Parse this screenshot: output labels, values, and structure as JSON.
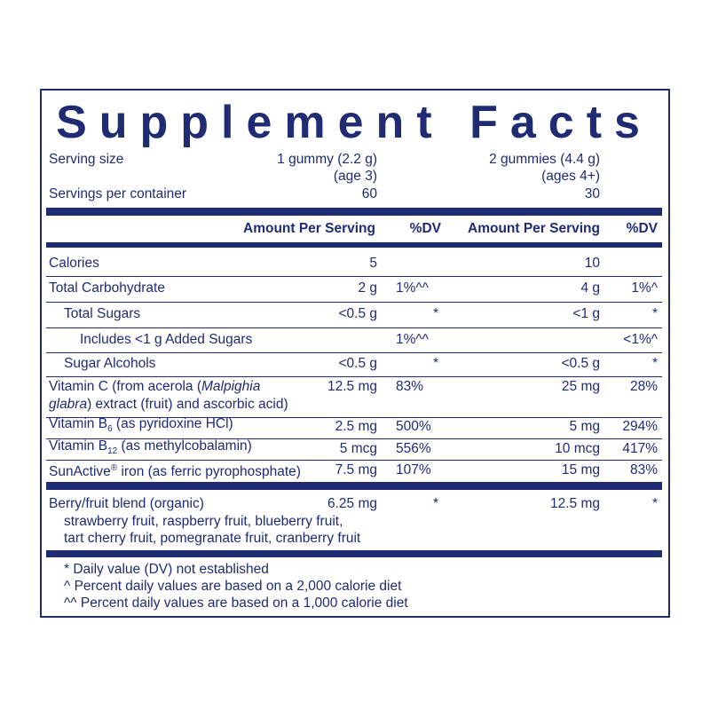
{
  "title": "Supplement Facts",
  "serving": {
    "size_label": "Serving size",
    "size_1": "1 gummy (2.2 g)",
    "size_1_note": "(age 3)",
    "size_2": "2 gummies (4.4 g)",
    "size_2_note": "(ages 4+)",
    "servings_label": "Servings per container",
    "servings_1": "60",
    "servings_2": "30"
  },
  "header": {
    "amount_1": "Amount Per Serving",
    "dv_1": "%DV",
    "amount_2": "Amount Per Serving",
    "dv_2": "%DV"
  },
  "rows": [
    {
      "label": [
        [
          {
            "t": "Calories"
          }
        ]
      ],
      "level": 0,
      "amount_1": "5",
      "amount_2": "10"
    },
    {
      "label": [
        [
          {
            "t": "Total Carbohydrate"
          }
        ]
      ],
      "level": 0,
      "amount_1": "2 g",
      "dv_1": "1%^^",
      "amount_2": "4 g",
      "dv_2": "1%^"
    },
    {
      "label": [
        [
          {
            "t": "Total Sugars"
          }
        ]
      ],
      "level": 1,
      "amount_1": "<0.5 g",
      "dv_1": "*",
      "amount_2": "<1 g",
      "dv_2": "*"
    },
    {
      "label": [
        [
          {
            "t": "Includes <1 g Added Sugars"
          }
        ]
      ],
      "level": 2,
      "dv_1": "1%^^",
      "dv_2": "<1%^"
    },
    {
      "label": [
        [
          {
            "t": "Sugar Alcohols"
          }
        ]
      ],
      "level": 1,
      "amount_1": "<0.5 g",
      "dv_1": "*",
      "amount_2": "<0.5 g",
      "dv_2": "*"
    },
    {
      "label": [
        [
          {
            "t": "Vitamin C (from acerola ("
          },
          {
            "i": "Malpighia"
          }
        ],
        [
          {
            "i": "glabra"
          },
          {
            "t": ") extract (fruit) and ascorbic acid)"
          }
        ]
      ],
      "level": 0,
      "amount_1": "12.5 mg",
      "dv_1": "83%",
      "amount_2": "25 mg",
      "dv_2": "28%"
    },
    {
      "label": [
        [
          {
            "t": "Vitamin B"
          },
          {
            "sub": "6"
          },
          {
            "t": " (as pyridoxine HCl)"
          }
        ]
      ],
      "level": 0,
      "amount_1": "2.5 mg",
      "dv_1": "500%",
      "amount_2": "5 mg",
      "dv_2": "294%"
    },
    {
      "label": [
        [
          {
            "t": "Vitamin B"
          },
          {
            "sub": "12"
          },
          {
            "t": " (as methylcobalamin)"
          }
        ]
      ],
      "level": 0,
      "amount_1": "5 mcg",
      "dv_1": "556%",
      "amount_2": "10 mcg",
      "dv_2": "417%"
    },
    {
      "label": [
        [
          {
            "t": "SunActive"
          },
          {
            "sup": "®"
          },
          {
            "t": " iron (as ferric pyrophosphate)"
          }
        ]
      ],
      "level": 0,
      "amount_1": "7.5 mg",
      "dv_1": "107%",
      "amount_2": "15 mg",
      "dv_2": "83%"
    }
  ],
  "blend": {
    "label": "Berry/fruit blend (organic)",
    "amount_1": "6.25 mg",
    "dv_1": "*",
    "amount_2": "12.5 mg",
    "dv_2": "*",
    "ingredients": [
      "strawberry fruit, raspberry fruit, blueberry fruit,",
      "tart cherry fruit, pomegranate fruit, cranberry fruit"
    ]
  },
  "footnotes": [
    "* Daily value (DV) not established",
    "^ Percent daily values are based on a 2,000 calorie diet",
    "^^ Percent daily values are based on a 1,000 calorie diet"
  ]
}
